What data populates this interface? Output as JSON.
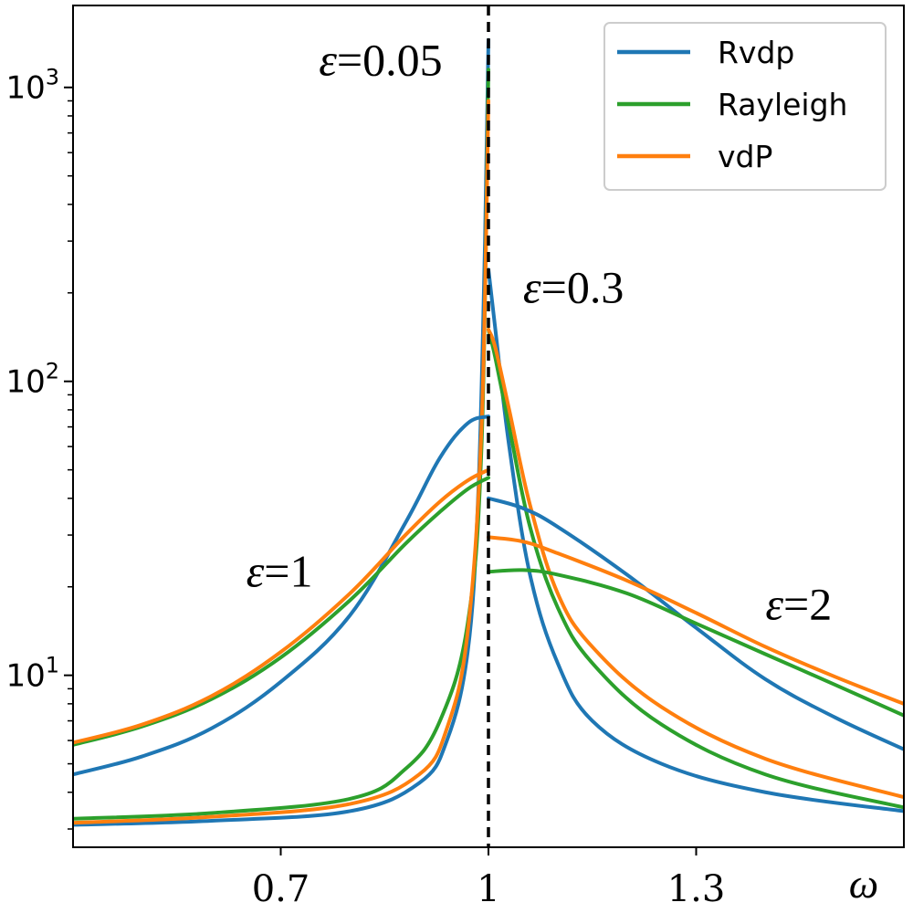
{
  "chart_data": {
    "type": "line",
    "title": "",
    "xlabel": "ω",
    "ylabel": "",
    "xscale": "linear",
    "yscale": "log",
    "xlim": [
      0.4,
      1.6
    ],
    "ylim": [
      2.6,
      1900
    ],
    "xticks": [
      {
        "value": 0.7,
        "label": "0.7"
      },
      {
        "value": 1.0,
        "label": "1"
      },
      {
        "value": 1.3,
        "label": "1.3"
      }
    ],
    "yticks": [
      {
        "value": 10,
        "base": "10",
        "exp": "1"
      },
      {
        "value": 100,
        "base": "10",
        "exp": "2"
      },
      {
        "value": 1000,
        "base": "10",
        "exp": "3"
      }
    ],
    "vline": {
      "x": 1.0,
      "style": "dashed",
      "color": "#000000"
    },
    "legend": {
      "position": "upper right",
      "entries": [
        {
          "name": "Rvdp",
          "color": "#1f77b4"
        },
        {
          "name": "Rayleigh",
          "color": "#2ca02c"
        },
        {
          "name": "vdP",
          "color": "#ff7f0e"
        }
      ]
    },
    "annotations": [
      {
        "eps": "ε",
        "eq": "=",
        "value": "0.05",
        "x": 0.755,
        "y": 1100
      },
      {
        "eps": "ε",
        "eq": "=",
        "value": "0.3",
        "x": 1.05,
        "y": 185
      },
      {
        "eps": "ε",
        "eq": "=",
        "value": "1",
        "x": 0.65,
        "y": 20
      },
      {
        "eps": "ε",
        "eq": "=",
        "value": "2",
        "x": 1.4,
        "y": 15.5
      }
    ],
    "series": [
      {
        "name": "Rvdp",
        "epsilon": "0.05",
        "color": "#1f77b4",
        "points": [
          [
            0.4,
            3.1
          ],
          [
            0.6,
            3.2
          ],
          [
            0.8,
            3.45
          ],
          [
            0.9,
            4.3
          ],
          [
            0.94,
            6
          ],
          [
            0.97,
            12
          ],
          [
            0.985,
            40
          ],
          [
            0.995,
            300
          ],
          [
            1.0,
            1450
          ],
          [
            1.0,
            240
          ],
          [
            1.01,
            150
          ],
          [
            1.03,
            60
          ],
          [
            1.06,
            22
          ],
          [
            1.1,
            11
          ],
          [
            1.15,
            7
          ],
          [
            1.25,
            5
          ],
          [
            1.4,
            4
          ],
          [
            1.6,
            3.45
          ]
        ]
      },
      {
        "name": "Rayleigh",
        "epsilon": "0.05",
        "color": "#2ca02c",
        "points": [
          [
            0.4,
            3.25
          ],
          [
            0.6,
            3.4
          ],
          [
            0.8,
            3.8
          ],
          [
            0.88,
            4.8
          ],
          [
            0.93,
            7
          ],
          [
            0.97,
            15
          ],
          [
            0.99,
            60
          ],
          [
            1.0,
            1150
          ],
          [
            1.0,
            150
          ],
          [
            1.01,
            120
          ],
          [
            1.03,
            70
          ],
          [
            1.06,
            32
          ],
          [
            1.1,
            17
          ],
          [
            1.15,
            11
          ],
          [
            1.25,
            6.8
          ],
          [
            1.4,
            4.6
          ],
          [
            1.6,
            3.55
          ]
        ]
      },
      {
        "name": "vdP",
        "epsilon": "0.05",
        "color": "#ff7f0e",
        "points": [
          [
            0.4,
            3.15
          ],
          [
            0.6,
            3.3
          ],
          [
            0.8,
            3.65
          ],
          [
            0.9,
            4.6
          ],
          [
            0.94,
            6.6
          ],
          [
            0.97,
            14
          ],
          [
            0.99,
            70
          ],
          [
            1.0,
            900
          ],
          [
            1.0,
            150
          ],
          [
            1.01,
            130
          ],
          [
            1.03,
            80
          ],
          [
            1.06,
            38
          ],
          [
            1.1,
            19
          ],
          [
            1.15,
            12.5
          ],
          [
            1.25,
            7.8
          ],
          [
            1.4,
            5.2
          ],
          [
            1.6,
            3.85
          ]
        ]
      },
      {
        "name": "Rvdp",
        "epsilon": "1",
        "color": "#1f77b4",
        "points": [
          [
            0.4,
            4.6
          ],
          [
            0.5,
            5.3
          ],
          [
            0.6,
            6.6
          ],
          [
            0.7,
            9.5
          ],
          [
            0.8,
            16
          ],
          [
            0.88,
            33
          ],
          [
            0.93,
            55
          ],
          [
            0.97,
            72
          ],
          [
            1.0,
            76
          ]
        ]
      },
      {
        "name": "Rayleigh",
        "epsilon": "1",
        "color": "#2ca02c",
        "points": [
          [
            0.4,
            5.8
          ],
          [
            0.5,
            6.7
          ],
          [
            0.6,
            8.3
          ],
          [
            0.7,
            11.5
          ],
          [
            0.8,
            18
          ],
          [
            0.88,
            28
          ],
          [
            0.93,
            36
          ],
          [
            0.97,
            43
          ],
          [
            1.0,
            47
          ]
        ]
      },
      {
        "name": "vdP",
        "epsilon": "1",
        "color": "#ff7f0e",
        "points": [
          [
            0.4,
            5.9
          ],
          [
            0.5,
            6.8
          ],
          [
            0.6,
            8.5
          ],
          [
            0.7,
            12
          ],
          [
            0.8,
            19
          ],
          [
            0.88,
            30
          ],
          [
            0.93,
            39
          ],
          [
            0.97,
            46
          ],
          [
            1.0,
            50
          ]
        ]
      },
      {
        "name": "Rvdp",
        "epsilon": "2",
        "color": "#1f77b4",
        "points": [
          [
            1.0,
            40
          ],
          [
            1.05,
            37
          ],
          [
            1.1,
            32
          ],
          [
            1.2,
            22
          ],
          [
            1.3,
            14.5
          ],
          [
            1.4,
            9.7
          ],
          [
            1.5,
            7.2
          ],
          [
            1.6,
            5.6
          ]
        ]
      },
      {
        "name": "Rayleigh",
        "epsilon": "2",
        "color": "#2ca02c",
        "points": [
          [
            1.0,
            22.5
          ],
          [
            1.05,
            22.8
          ],
          [
            1.1,
            22
          ],
          [
            1.2,
            19
          ],
          [
            1.3,
            15
          ],
          [
            1.4,
            11.8
          ],
          [
            1.5,
            9.3
          ],
          [
            1.6,
            7.3
          ]
        ]
      },
      {
        "name": "vdP",
        "epsilon": "2",
        "color": "#ff7f0e",
        "points": [
          [
            1.0,
            29.5
          ],
          [
            1.05,
            28.5
          ],
          [
            1.1,
            26
          ],
          [
            1.2,
            21
          ],
          [
            1.3,
            16.3
          ],
          [
            1.4,
            12.5
          ],
          [
            1.5,
            9.9
          ],
          [
            1.6,
            8
          ]
        ]
      }
    ]
  }
}
